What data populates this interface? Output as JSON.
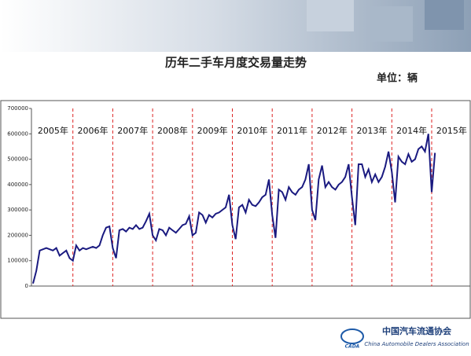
{
  "chart_data": {
    "type": "line",
    "title": "历年二手车月度交易量走势",
    "unit": "单位：辆",
    "years": [
      "2005年",
      "2006年",
      "2007年",
      "2008年",
      "2009年",
      "2010年",
      "2011年",
      "2012年",
      "2013年",
      "2014年",
      "2015年"
    ],
    "series": [
      {
        "color": "#1a1a80",
        "values": [
          10000,
          60000,
          140000,
          145000,
          150000,
          145000,
          140000,
          150000,
          120000,
          130000,
          140000,
          110000,
          100000,
          160000,
          140000,
          150000,
          145000,
          150000,
          155000,
          150000,
          160000,
          200000,
          230000,
          235000,
          150000,
          110000,
          220000,
          225000,
          215000,
          230000,
          225000,
          240000,
          225000,
          230000,
          255000,
          285000,
          200000,
          180000,
          225000,
          220000,
          200000,
          230000,
          220000,
          210000,
          225000,
          240000,
          245000,
          275000,
          200000,
          210000,
          290000,
          280000,
          250000,
          280000,
          270000,
          285000,
          290000,
          300000,
          310000,
          360000,
          240000,
          185000,
          310000,
          320000,
          290000,
          340000,
          320000,
          315000,
          330000,
          350000,
          360000,
          420000,
          280000,
          190000,
          380000,
          370000,
          340000,
          390000,
          370000,
          360000,
          380000,
          390000,
          420000,
          480000,
          300000,
          260000,
          420000,
          475000,
          390000,
          410000,
          390000,
          380000,
          400000,
          410000,
          430000,
          480000,
          350000,
          240000,
          480000,
          480000,
          430000,
          460000,
          410000,
          440000,
          410000,
          430000,
          470000,
          530000,
          450000,
          330000,
          510000,
          490000,
          480000,
          520000,
          490000,
          500000,
          540000,
          550000,
          530000,
          600000,
          370000,
          525000
        ]
      }
    ],
    "ylim": [
      0,
      700000
    ],
    "yticks": [
      0,
      100000,
      200000,
      300000,
      400000,
      500000,
      600000,
      700000
    ]
  },
  "footer": {
    "org_cn": "中国汽车流通协会",
    "org_en": "China Automobile Dealers Association",
    "logo": "CADA"
  }
}
